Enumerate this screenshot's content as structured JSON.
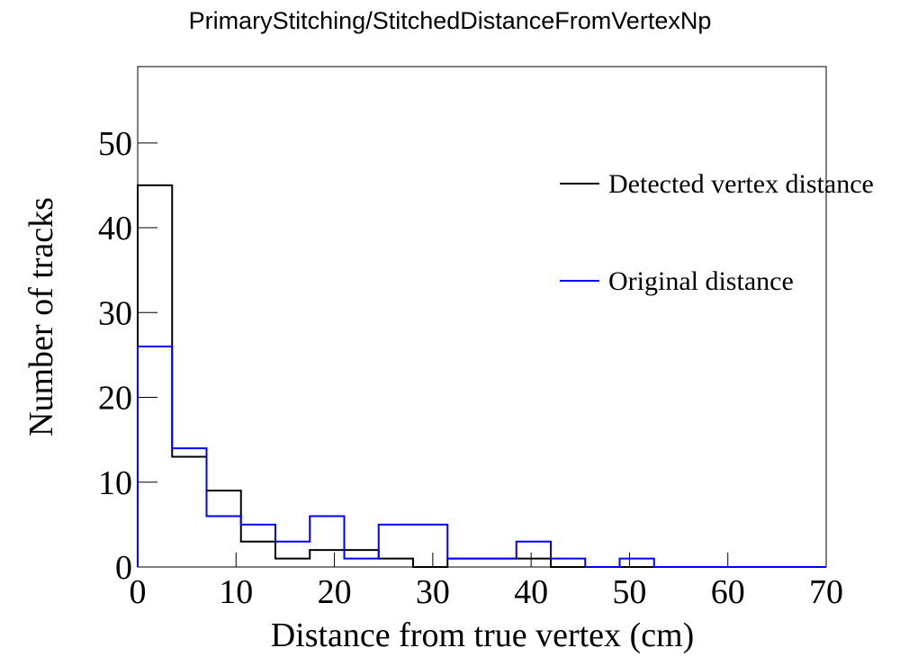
{
  "chart_data": {
    "type": "histogram-step",
    "title": "PrimaryStitching/StitchedDistanceFromVertexNp",
    "xlabel": "Distance from true vertex (cm)",
    "ylabel": "Number of tracks",
    "xlim": [
      0,
      70
    ],
    "ylim": [
      0,
      59
    ],
    "xticks": [
      0,
      10,
      20,
      30,
      40,
      50,
      60,
      70
    ],
    "yticks": [
      0,
      10,
      20,
      30,
      40,
      50
    ],
    "bin_edges": [
      0,
      3.5,
      7,
      10.5,
      14,
      17.5,
      21,
      24.5,
      28,
      31.5,
      35,
      38.5,
      42,
      45.5,
      49,
      52.5,
      56,
      59.5,
      63,
      66.5,
      70
    ],
    "series": [
      {
        "name": "Detected vertex distance",
        "color": "#000000",
        "values": [
          45,
          13,
          9,
          3,
          1,
          2,
          2,
          1,
          0,
          1,
          1,
          1,
          0,
          0,
          0,
          0,
          0,
          0,
          0,
          0
        ]
      },
      {
        "name": "Original distance",
        "color": "#0000ff",
        "values": [
          26,
          14,
          6,
          5,
          3,
          6,
          1,
          5,
          5,
          1,
          1,
          3,
          1,
          0,
          1,
          0,
          0,
          0,
          0,
          0
        ]
      }
    ],
    "legend_position": "top-right",
    "grid": false
  }
}
